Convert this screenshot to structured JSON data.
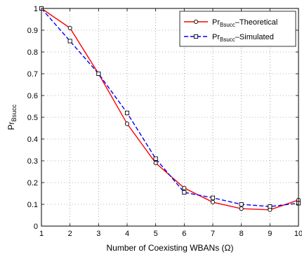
{
  "chart_data": {
    "type": "line",
    "xlabel": "Number of Coexisting WBANs (Ω)",
    "ylabel": {
      "base": "Pr",
      "sub": "Bsucc"
    },
    "xlim": [
      1,
      10
    ],
    "ylim": [
      0,
      1
    ],
    "xticks": [
      "1",
      "2",
      "3",
      "4",
      "5",
      "6",
      "7",
      "8",
      "9",
      "10"
    ],
    "yticks": [
      "0",
      "0.1",
      "0.2",
      "0.3",
      "0.4",
      "0.5",
      "0.6",
      "0.7",
      "0.8",
      "0.9",
      "1"
    ],
    "grid": true,
    "legend_position": "top-right",
    "series": [
      {
        "name": "Pr_Bsucc-Theoretical",
        "legend": {
          "base": "Pr",
          "sub": "Bsucc",
          "suffix": "–Theoretical"
        },
        "color": "#ff0000",
        "line_style": "solid",
        "marker": "circle",
        "x": [
          1,
          2,
          3,
          4,
          5,
          6,
          7,
          8,
          9,
          10
        ],
        "values": [
          1.0,
          0.91,
          0.7,
          0.47,
          0.29,
          0.175,
          0.11,
          0.08,
          0.075,
          0.12
        ]
      },
      {
        "name": "Pr_Bsucc-Simulated",
        "legend": {
          "base": "Pr",
          "sub": "Bsucc",
          "suffix": "–Simulated"
        },
        "color": "#0000ff",
        "line_style": "dashed",
        "marker": "square",
        "x": [
          1,
          2,
          3,
          4,
          5,
          6,
          7,
          8,
          9,
          10
        ],
        "values": [
          1.0,
          0.85,
          0.7,
          0.52,
          0.31,
          0.155,
          0.13,
          0.1,
          0.09,
          0.105
        ]
      }
    ]
  }
}
